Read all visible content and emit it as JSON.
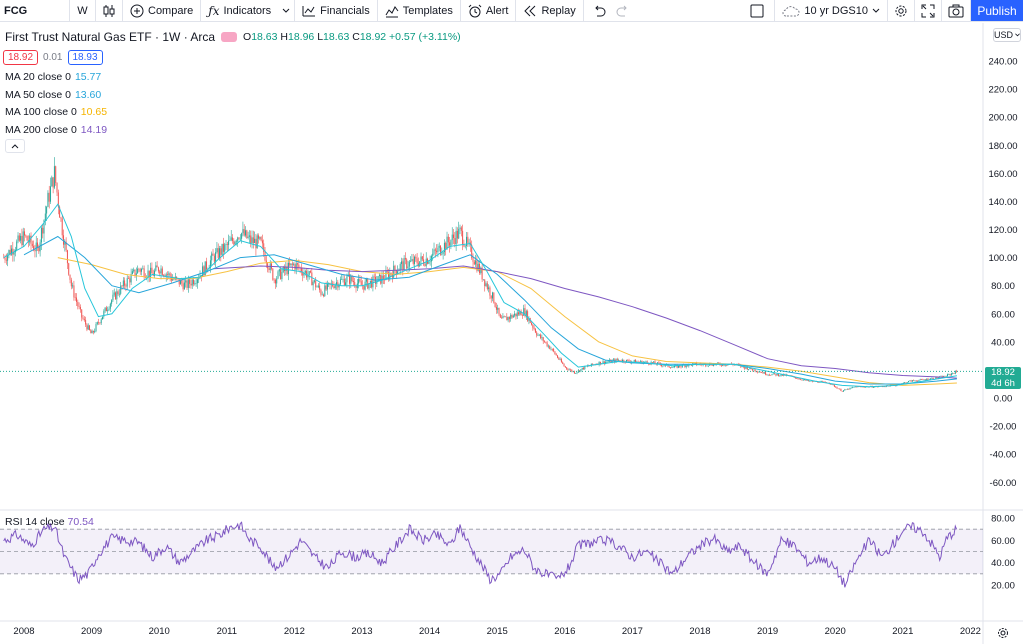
{
  "toolbar": {
    "symbol": "FCG",
    "interval": "W",
    "compare": "Compare",
    "indicators": "Indicators",
    "financials": "Financials",
    "templates": "Templates",
    "alert": "Alert",
    "replay": "Replay",
    "layout_name": "10 yr DGS10",
    "publish": "Publish"
  },
  "legend": {
    "title": "First Trust Natural Gas ETF · 1W · Arca",
    "ohlc": {
      "o_label": "O",
      "o": "18.63",
      "h_label": "H",
      "h": "18.96",
      "l_label": "L",
      "l": "18.63",
      "c_label": "C",
      "c": "18.92",
      "change": "+0.57 (+3.11%)"
    },
    "sell": "18.92",
    "spread": "0.01",
    "buy": "18.93",
    "mas": [
      {
        "label": "MA 20 close 0",
        "value": "15.77",
        "color": "#26c6da"
      },
      {
        "label": "MA 50 close 0",
        "value": "13.60",
        "color": "#26c6da"
      },
      {
        "label": "MA 100 close 0",
        "value": "10.65",
        "color": "#f7c242"
      },
      {
        "label": "MA 200 close 0",
        "value": "14.19",
        "color": "#7e57c2"
      }
    ]
  },
  "currency": "USD",
  "price_tag": {
    "price": "18.92",
    "countdown": "4d 6h"
  },
  "rsi": {
    "label": "RSI 14 close",
    "value": "70.54"
  },
  "chart_data": {
    "type": "candlestick",
    "price_axis": {
      "min": -70,
      "max": 250,
      "ticks": [
        "240.00",
        "220.00",
        "200.00",
        "180.00",
        "160.00",
        "140.00",
        "120.00",
        "100.00",
        "80.00",
        "60.00",
        "40.00",
        "20.00",
        "0.00",
        "-20.00",
        "-40.00",
        "-60.00"
      ]
    },
    "rsi_axis": {
      "ticks": [
        "80.00",
        "60.00",
        "40.00",
        "20.00"
      ],
      "upper_band": 70,
      "lower_band": 30,
      "mid": 50
    },
    "x_ticks": [
      "2008",
      "2009",
      "2010",
      "2011",
      "2012",
      "2013",
      "2014",
      "2015",
      "2016",
      "2017",
      "2018",
      "2019",
      "2020",
      "2021",
      "2022"
    ],
    "years": [
      2008,
      2009,
      2010,
      2011,
      2012,
      2013,
      2014,
      2015,
      2016,
      2017,
      2018,
      2019,
      2020,
      2021,
      2022
    ],
    "price_path": [
      [
        2007.7,
        100
      ],
      [
        2008.0,
        115
      ],
      [
        2008.2,
        105
      ],
      [
        2008.35,
        140
      ],
      [
        2008.45,
        160
      ],
      [
        2008.55,
        125
      ],
      [
        2008.7,
        80
      ],
      [
        2008.85,
        58
      ],
      [
        2009.0,
        45
      ],
      [
        2009.15,
        58
      ],
      [
        2009.3,
        70
      ],
      [
        2009.5,
        82
      ],
      [
        2009.7,
        92
      ],
      [
        2009.9,
        88
      ],
      [
        2010.0,
        93
      ],
      [
        2010.2,
        85
      ],
      [
        2010.4,
        80
      ],
      [
        2010.6,
        88
      ],
      [
        2010.8,
        100
      ],
      [
        2011.0,
        108
      ],
      [
        2011.2,
        118
      ],
      [
        2011.35,
        112
      ],
      [
        2011.5,
        110
      ],
      [
        2011.7,
        85
      ],
      [
        2011.9,
        92
      ],
      [
        2012.0,
        95
      ],
      [
        2012.2,
        88
      ],
      [
        2012.4,
        75
      ],
      [
        2012.6,
        82
      ],
      [
        2012.8,
        85
      ],
      [
        2013.0,
        80
      ],
      [
        2013.3,
        85
      ],
      [
        2013.6,
        95
      ],
      [
        2013.9,
        98
      ],
      [
        2014.0,
        100
      ],
      [
        2014.2,
        108
      ],
      [
        2014.45,
        118
      ],
      [
        2014.6,
        105
      ],
      [
        2014.8,
        85
      ],
      [
        2014.95,
        70
      ],
      [
        2015.05,
        55
      ],
      [
        2015.2,
        58
      ],
      [
        2015.4,
        62
      ],
      [
        2015.6,
        45
      ],
      [
        2015.8,
        35
      ],
      [
        2016.0,
        22
      ],
      [
        2016.15,
        18
      ],
      [
        2016.3,
        22
      ],
      [
        2016.5,
        25
      ],
      [
        2016.8,
        27
      ],
      [
        2017.0,
        26
      ],
      [
        2017.3,
        25
      ],
      [
        2017.6,
        22
      ],
      [
        2017.9,
        24
      ],
      [
        2018.2,
        24
      ],
      [
        2018.5,
        24
      ],
      [
        2018.8,
        20
      ],
      [
        2019.0,
        17
      ],
      [
        2019.3,
        16
      ],
      [
        2019.6,
        12
      ],
      [
        2019.9,
        11
      ],
      [
        2020.1,
        5
      ],
      [
        2020.3,
        8
      ],
      [
        2020.6,
        8
      ],
      [
        2020.9,
        9
      ],
      [
        2021.1,
        12
      ],
      [
        2021.3,
        13
      ],
      [
        2021.6,
        15
      ],
      [
        2021.8,
        18.9
      ]
    ],
    "ma20_path": [
      [
        2007.7,
        100
      ],
      [
        2008.0,
        108
      ],
      [
        2008.3,
        125
      ],
      [
        2008.5,
        138
      ],
      [
        2008.7,
        115
      ],
      [
        2008.9,
        78
      ],
      [
        2009.1,
        58
      ],
      [
        2009.3,
        60
      ],
      [
        2009.6,
        78
      ],
      [
        2009.9,
        88
      ],
      [
        2010.3,
        85
      ],
      [
        2010.6,
        86
      ],
      [
        2010.9,
        100
      ],
      [
        2011.2,
        112
      ],
      [
        2011.5,
        108
      ],
      [
        2011.8,
        92
      ],
      [
        2012.1,
        90
      ],
      [
        2012.4,
        82
      ],
      [
        2012.7,
        80
      ],
      [
        2013.0,
        80
      ],
      [
        2013.3,
        84
      ],
      [
        2013.7,
        92
      ],
      [
        2014.0,
        98
      ],
      [
        2014.3,
        108
      ],
      [
        2014.6,
        110
      ],
      [
        2014.85,
        90
      ],
      [
        2015.1,
        68
      ],
      [
        2015.4,
        60
      ],
      [
        2015.7,
        45
      ],
      [
        2015.95,
        32
      ],
      [
        2016.2,
        22
      ],
      [
        2016.5,
        24
      ],
      [
        2016.8,
        26
      ],
      [
        2017.2,
        25
      ],
      [
        2017.6,
        23
      ],
      [
        2018.0,
        24
      ],
      [
        2018.5,
        24
      ],
      [
        2018.9,
        20
      ],
      [
        2019.3,
        16
      ],
      [
        2019.7,
        12
      ],
      [
        2020.1,
        9
      ],
      [
        2020.5,
        8
      ],
      [
        2020.9,
        9
      ],
      [
        2021.3,
        12
      ],
      [
        2021.8,
        15.8
      ]
    ],
    "ma50_path": [
      [
        2008.0,
        102
      ],
      [
        2008.5,
        115
      ],
      [
        2008.9,
        100
      ],
      [
        2009.3,
        80
      ],
      [
        2009.7,
        75
      ],
      [
        2010.2,
        82
      ],
      [
        2010.7,
        90
      ],
      [
        2011.2,
        100
      ],
      [
        2011.7,
        102
      ],
      [
        2012.2,
        95
      ],
      [
        2012.7,
        88
      ],
      [
        2013.2,
        84
      ],
      [
        2013.7,
        86
      ],
      [
        2014.2,
        95
      ],
      [
        2014.6,
        102
      ],
      [
        2015.0,
        88
      ],
      [
        2015.4,
        70
      ],
      [
        2015.8,
        50
      ],
      [
        2016.2,
        35
      ],
      [
        2016.6,
        27
      ],
      [
        2017.0,
        25
      ],
      [
        2017.5,
        24
      ],
      [
        2018.0,
        24
      ],
      [
        2018.5,
        24
      ],
      [
        2019.0,
        21
      ],
      [
        2019.5,
        17
      ],
      [
        2020.0,
        12
      ],
      [
        2020.5,
        10
      ],
      [
        2021.0,
        10
      ],
      [
        2021.5,
        12
      ],
      [
        2021.8,
        13.6
      ]
    ],
    "ma100_path": [
      [
        2008.5,
        100
      ],
      [
        2009.0,
        95
      ],
      [
        2009.5,
        88
      ],
      [
        2010.0,
        85
      ],
      [
        2010.5,
        85
      ],
      [
        2011.0,
        90
      ],
      [
        2011.5,
        96
      ],
      [
        2012.0,
        98
      ],
      [
        2012.5,
        95
      ],
      [
        2013.0,
        90
      ],
      [
        2013.5,
        88
      ],
      [
        2014.0,
        90
      ],
      [
        2014.5,
        93
      ],
      [
        2015.0,
        90
      ],
      [
        2015.5,
        78
      ],
      [
        2016.0,
        58
      ],
      [
        2016.5,
        40
      ],
      [
        2017.0,
        30
      ],
      [
        2017.5,
        26
      ],
      [
        2018.0,
        25
      ],
      [
        2018.5,
        24
      ],
      [
        2019.0,
        22
      ],
      [
        2019.5,
        19
      ],
      [
        2020.0,
        15
      ],
      [
        2020.5,
        11
      ],
      [
        2021.0,
        9
      ],
      [
        2021.5,
        10
      ],
      [
        2021.8,
        10.65
      ]
    ],
    "ma200_path": [
      [
        2010.8,
        92
      ],
      [
        2011.5,
        94
      ],
      [
        2012.0,
        93
      ],
      [
        2012.5,
        91
      ],
      [
        2013.0,
        90
      ],
      [
        2013.5,
        91
      ],
      [
        2014.0,
        92
      ],
      [
        2014.5,
        94
      ],
      [
        2015.0,
        90
      ],
      [
        2015.5,
        85
      ],
      [
        2016.0,
        78
      ],
      [
        2016.5,
        72
      ],
      [
        2017.0,
        65
      ],
      [
        2017.5,
        57
      ],
      [
        2018.0,
        48
      ],
      [
        2018.5,
        38
      ],
      [
        2019.0,
        28
      ],
      [
        2019.5,
        23
      ],
      [
        2020.0,
        21
      ],
      [
        2020.5,
        18
      ],
      [
        2021.0,
        16
      ],
      [
        2021.5,
        15
      ],
      [
        2021.8,
        14.19
      ]
    ],
    "rsi_path": [
      [
        2007.7,
        60
      ],
      [
        2007.9,
        65
      ],
      [
        2008.1,
        55
      ],
      [
        2008.3,
        70
      ],
      [
        2008.45,
        72
      ],
      [
        2008.6,
        45
      ],
      [
        2008.8,
        25
      ],
      [
        2008.95,
        30
      ],
      [
        2009.1,
        48
      ],
      [
        2009.3,
        62
      ],
      [
        2009.5,
        60
      ],
      [
        2009.7,
        58
      ],
      [
        2009.9,
        45
      ],
      [
        2010.1,
        55
      ],
      [
        2010.3,
        40
      ],
      [
        2010.5,
        50
      ],
      [
        2010.7,
        60
      ],
      [
        2010.9,
        65
      ],
      [
        2011.05,
        72
      ],
      [
        2011.2,
        74
      ],
      [
        2011.35,
        60
      ],
      [
        2011.5,
        55
      ],
      [
        2011.7,
        35
      ],
      [
        2011.9,
        45
      ],
      [
        2012.1,
        60
      ],
      [
        2012.3,
        45
      ],
      [
        2012.5,
        35
      ],
      [
        2012.7,
        50
      ],
      [
        2012.9,
        45
      ],
      [
        2013.1,
        48
      ],
      [
        2013.3,
        40
      ],
      [
        2013.5,
        55
      ],
      [
        2013.7,
        70
      ],
      [
        2013.9,
        60
      ],
      [
        2014.1,
        65
      ],
      [
        2014.3,
        55
      ],
      [
        2014.45,
        72
      ],
      [
        2014.6,
        55
      ],
      [
        2014.75,
        40
      ],
      [
        2014.9,
        25
      ],
      [
        2015.05,
        30
      ],
      [
        2015.2,
        45
      ],
      [
        2015.4,
        52
      ],
      [
        2015.55,
        35
      ],
      [
        2015.7,
        30
      ],
      [
        2015.9,
        25
      ],
      [
        2016.05,
        35
      ],
      [
        2016.2,
        55
      ],
      [
        2016.4,
        58
      ],
      [
        2016.6,
        60
      ],
      [
        2016.8,
        55
      ],
      [
        2017.0,
        45
      ],
      [
        2017.2,
        50
      ],
      [
        2017.4,
        40
      ],
      [
        2017.6,
        30
      ],
      [
        2017.8,
        45
      ],
      [
        2018.0,
        55
      ],
      [
        2018.2,
        62
      ],
      [
        2018.4,
        50
      ],
      [
        2018.6,
        55
      ],
      [
        2018.8,
        40
      ],
      [
        2019.0,
        30
      ],
      [
        2019.2,
        60
      ],
      [
        2019.4,
        55
      ],
      [
        2019.6,
        40
      ],
      [
        2019.8,
        45
      ],
      [
        2020.0,
        35
      ],
      [
        2020.15,
        20
      ],
      [
        2020.3,
        40
      ],
      [
        2020.5,
        60
      ],
      [
        2020.7,
        45
      ],
      [
        2020.9,
        60
      ],
      [
        2021.0,
        70
      ],
      [
        2021.15,
        72
      ],
      [
        2021.3,
        68
      ],
      [
        2021.45,
        55
      ],
      [
        2021.55,
        45
      ],
      [
        2021.65,
        62
      ],
      [
        2021.8,
        70.5
      ]
    ]
  }
}
